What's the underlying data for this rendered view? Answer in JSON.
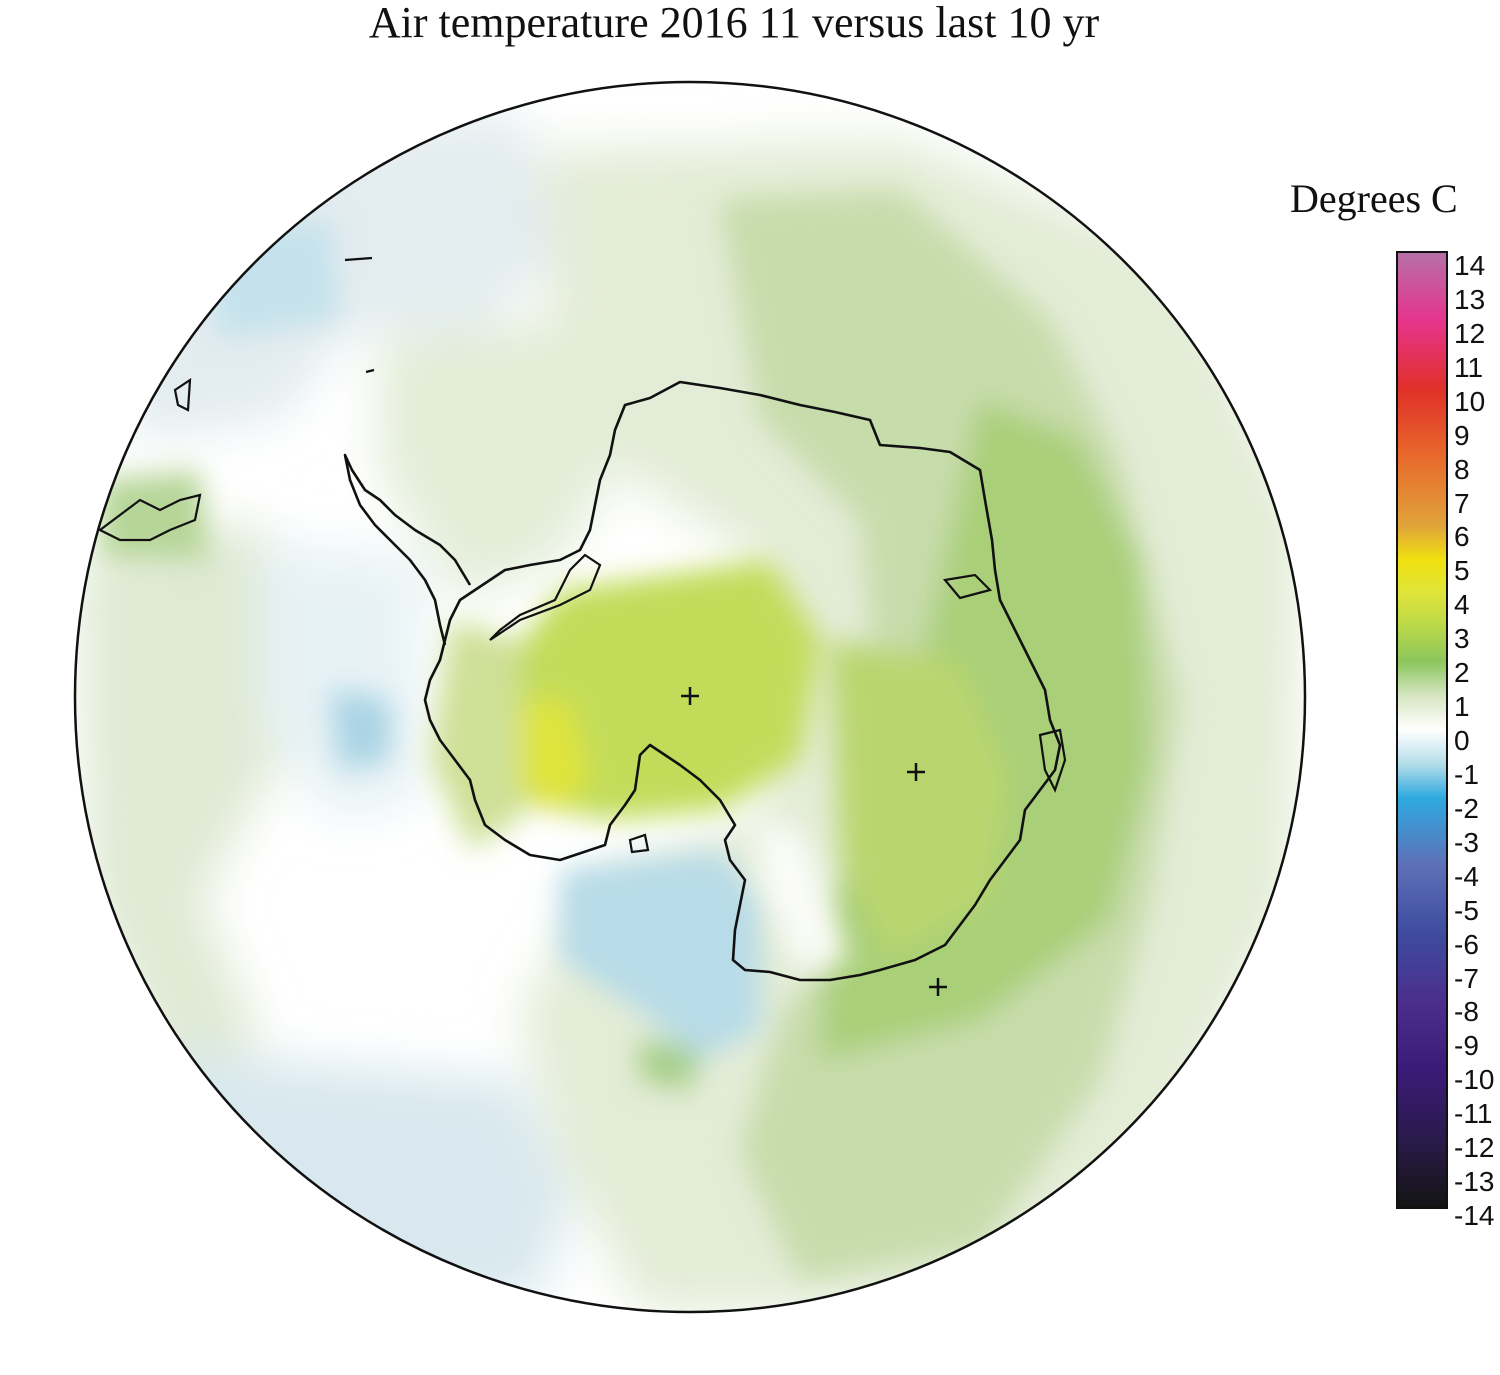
{
  "title": "Air temperature 2016 11 versus last 10 yr",
  "legend": {
    "unit_label": "Degrees C",
    "ticks": [
      "14",
      "13",
      "12",
      "11",
      "10",
      "9",
      "8",
      "7",
      "6",
      "5",
      "4",
      "3",
      "2",
      "1",
      "0",
      "-1",
      "-2",
      "-3",
      "-4",
      "-5",
      "-6",
      "-7",
      "-8",
      "-9",
      "-10",
      "-11",
      "-12",
      "-13",
      "-14"
    ],
    "color_stops": [
      {
        "value": 14,
        "color": "#b66fa9"
      },
      {
        "value": 12,
        "color": "#e6348c"
      },
      {
        "value": 10,
        "color": "#e03028"
      },
      {
        "value": 8,
        "color": "#e86a2c"
      },
      {
        "value": 6,
        "color": "#e0a33a"
      },
      {
        "value": 5,
        "color": "#f0e010"
      },
      {
        "value": 4,
        "color": "#dfe43a"
      },
      {
        "value": 3,
        "color": "#b8d84a"
      },
      {
        "value": 2,
        "color": "#8cc65c"
      },
      {
        "value": 1,
        "color": "#d7e6c2"
      },
      {
        "value": 0,
        "color": "#ffffff"
      },
      {
        "value": -1,
        "color": "#b4dde9"
      },
      {
        "value": -2,
        "color": "#2ea9df"
      },
      {
        "value": -4,
        "color": "#5f6fb6"
      },
      {
        "value": -6,
        "color": "#3e4ba0"
      },
      {
        "value": -8,
        "color": "#4b2e8c"
      },
      {
        "value": -10,
        "color": "#3a1b77"
      },
      {
        "value": -12,
        "color": "#2a1a4c"
      },
      {
        "value": -14,
        "color": "#141414"
      }
    ]
  },
  "map": {
    "projection": "south-polar-stereographic",
    "features": [
      "temperature-anomaly-field",
      "antarctica-coastline",
      "station-markers"
    ]
  }
}
